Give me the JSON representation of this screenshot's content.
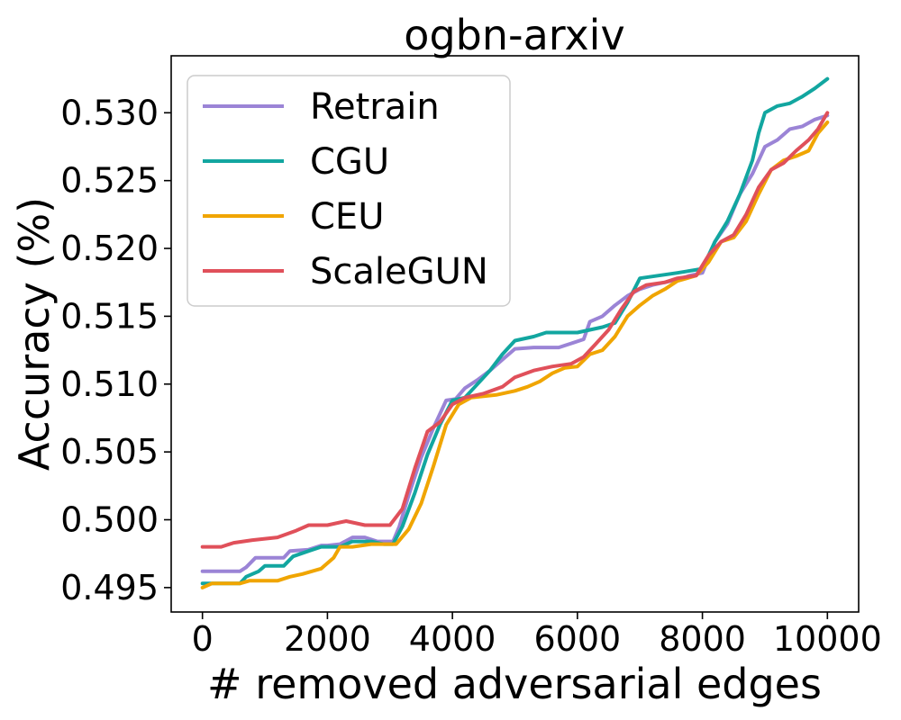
{
  "chart_data": {
    "type": "line",
    "title": "ogbn-arxiv",
    "xlabel": "# removed adversarial edges",
    "ylabel": "Accuracy (%)",
    "xlim": [
      -500,
      10500
    ],
    "ylim": [
      0.4932,
      0.5342
    ],
    "xticks": [
      0,
      2000,
      4000,
      6000,
      8000,
      10000
    ],
    "xtick_labels": [
      "0",
      "2000",
      "4000",
      "6000",
      "8000",
      "10000"
    ],
    "yticks": [
      0.495,
      0.5,
      0.505,
      0.51,
      0.515,
      0.52,
      0.525,
      0.53
    ],
    "ytick_labels": [
      "0.495",
      "0.500",
      "0.505",
      "0.510",
      "0.515",
      "0.520",
      "0.525",
      "0.530"
    ],
    "grid": false,
    "legend_position": "top-left",
    "series": [
      {
        "name": "Retrain",
        "color": "#9B84D6",
        "points": [
          [
            0,
            0.4962
          ],
          [
            600,
            0.4962
          ],
          [
            700,
            0.4965
          ],
          [
            850,
            0.4972
          ],
          [
            1300,
            0.4972
          ],
          [
            1400,
            0.4977
          ],
          [
            1700,
            0.4978
          ],
          [
            1900,
            0.4981
          ],
          [
            2000,
            0.4981
          ],
          [
            2200,
            0.4982
          ],
          [
            2400,
            0.4987
          ],
          [
            2600,
            0.4987
          ],
          [
            2800,
            0.4984
          ],
          [
            3050,
            0.4984
          ],
          [
            3150,
            0.4995
          ],
          [
            3300,
            0.5018
          ],
          [
            3500,
            0.5046
          ],
          [
            3700,
            0.5068
          ],
          [
            3900,
            0.5088
          ],
          [
            4050,
            0.5089
          ],
          [
            4200,
            0.5097
          ],
          [
            4400,
            0.5103
          ],
          [
            4600,
            0.511
          ],
          [
            4800,
            0.5118
          ],
          [
            5000,
            0.5126
          ],
          [
            5300,
            0.5127
          ],
          [
            5700,
            0.5127
          ],
          [
            5900,
            0.513
          ],
          [
            6100,
            0.5133
          ],
          [
            6200,
            0.5146
          ],
          [
            6400,
            0.515
          ],
          [
            6600,
            0.5158
          ],
          [
            6800,
            0.5165
          ],
          [
            7000,
            0.517
          ],
          [
            7200,
            0.5173
          ],
          [
            7400,
            0.5175
          ],
          [
            7600,
            0.5177
          ],
          [
            7800,
            0.518
          ],
          [
            8000,
            0.5182
          ],
          [
            8200,
            0.5205
          ],
          [
            8400,
            0.5218
          ],
          [
            8600,
            0.524
          ],
          [
            8800,
            0.5255
          ],
          [
            9000,
            0.5275
          ],
          [
            9200,
            0.528
          ],
          [
            9400,
            0.5288
          ],
          [
            9600,
            0.529
          ],
          [
            9800,
            0.5295
          ],
          [
            10000,
            0.5298
          ]
        ]
      },
      {
        "name": "CGU",
        "color": "#12A6A0",
        "points": [
          [
            0,
            0.4953
          ],
          [
            600,
            0.4953
          ],
          [
            700,
            0.4958
          ],
          [
            900,
            0.4962
          ],
          [
            1000,
            0.4966
          ],
          [
            1300,
            0.4966
          ],
          [
            1450,
            0.4973
          ],
          [
            1700,
            0.4977
          ],
          [
            1900,
            0.498
          ],
          [
            2200,
            0.498
          ],
          [
            2400,
            0.4984
          ],
          [
            2700,
            0.4984
          ],
          [
            2900,
            0.4982
          ],
          [
            3050,
            0.4982
          ],
          [
            3200,
            0.4995
          ],
          [
            3400,
            0.502
          ],
          [
            3600,
            0.5048
          ],
          [
            3800,
            0.507
          ],
          [
            4000,
            0.5088
          ],
          [
            4200,
            0.509
          ],
          [
            4400,
            0.51
          ],
          [
            4600,
            0.511
          ],
          [
            4800,
            0.5122
          ],
          [
            5000,
            0.5132
          ],
          [
            5300,
            0.5135
          ],
          [
            5500,
            0.5138
          ],
          [
            6000,
            0.5138
          ],
          [
            6200,
            0.514
          ],
          [
            6400,
            0.5142
          ],
          [
            6600,
            0.5145
          ],
          [
            6800,
            0.516
          ],
          [
            7000,
            0.5178
          ],
          [
            7300,
            0.518
          ],
          [
            7600,
            0.5182
          ],
          [
            8000,
            0.5185
          ],
          [
            8200,
            0.5205
          ],
          [
            8400,
            0.522
          ],
          [
            8600,
            0.524
          ],
          [
            8800,
            0.5265
          ],
          [
            8900,
            0.5285
          ],
          [
            9000,
            0.53
          ],
          [
            9200,
            0.5305
          ],
          [
            9400,
            0.5307
          ],
          [
            9600,
            0.5312
          ],
          [
            9800,
            0.5318
          ],
          [
            10000,
            0.5325
          ]
        ]
      },
      {
        "name": "CEU",
        "color": "#F0A500",
        "points": [
          [
            0,
            0.495
          ],
          [
            150,
            0.4953
          ],
          [
            600,
            0.4953
          ],
          [
            750,
            0.4955
          ],
          [
            1200,
            0.4955
          ],
          [
            1400,
            0.4958
          ],
          [
            1600,
            0.496
          ],
          [
            1900,
            0.4964
          ],
          [
            2100,
            0.4972
          ],
          [
            2200,
            0.498
          ],
          [
            2400,
            0.498
          ],
          [
            2700,
            0.4982
          ],
          [
            3100,
            0.4982
          ],
          [
            3300,
            0.4993
          ],
          [
            3500,
            0.5012
          ],
          [
            3700,
            0.504
          ],
          [
            3900,
            0.507
          ],
          [
            4100,
            0.5085
          ],
          [
            4300,
            0.509
          ],
          [
            4700,
            0.5092
          ],
          [
            5000,
            0.5095
          ],
          [
            5200,
            0.5098
          ],
          [
            5400,
            0.5102
          ],
          [
            5600,
            0.5108
          ],
          [
            5800,
            0.5112
          ],
          [
            6000,
            0.5113
          ],
          [
            6200,
            0.5122
          ],
          [
            6400,
            0.5125
          ],
          [
            6600,
            0.5135
          ],
          [
            6800,
            0.515
          ],
          [
            7000,
            0.5158
          ],
          [
            7200,
            0.5165
          ],
          [
            7400,
            0.517
          ],
          [
            7600,
            0.5176
          ],
          [
            7900,
            0.518
          ],
          [
            8100,
            0.519
          ],
          [
            8300,
            0.5205
          ],
          [
            8500,
            0.5208
          ],
          [
            8700,
            0.522
          ],
          [
            8900,
            0.524
          ],
          [
            9100,
            0.5258
          ],
          [
            9300,
            0.5265
          ],
          [
            9500,
            0.5268
          ],
          [
            9700,
            0.5272
          ],
          [
            9850,
            0.5285
          ],
          [
            10000,
            0.5293
          ]
        ]
      },
      {
        "name": "ScaleGUN",
        "color": "#E0505A",
        "points": [
          [
            0,
            0.498
          ],
          [
            300,
            0.498
          ],
          [
            500,
            0.4983
          ],
          [
            800,
            0.4985
          ],
          [
            1200,
            0.4987
          ],
          [
            1500,
            0.4992
          ],
          [
            1700,
            0.4996
          ],
          [
            2000,
            0.4996
          ],
          [
            2300,
            0.4999
          ],
          [
            2600,
            0.4996
          ],
          [
            3000,
            0.4996
          ],
          [
            3200,
            0.5008
          ],
          [
            3400,
            0.5038
          ],
          [
            3600,
            0.5065
          ],
          [
            3800,
            0.5072
          ],
          [
            4000,
            0.5085
          ],
          [
            4200,
            0.509
          ],
          [
            4500,
            0.5093
          ],
          [
            4800,
            0.5098
          ],
          [
            5000,
            0.5105
          ],
          [
            5300,
            0.511
          ],
          [
            5600,
            0.5113
          ],
          [
            5900,
            0.5115
          ],
          [
            6100,
            0.512
          ],
          [
            6300,
            0.513
          ],
          [
            6500,
            0.514
          ],
          [
            6700,
            0.5155
          ],
          [
            6900,
            0.5168
          ],
          [
            7100,
            0.5173
          ],
          [
            7400,
            0.5175
          ],
          [
            7600,
            0.5178
          ],
          [
            7900,
            0.518
          ],
          [
            8100,
            0.5195
          ],
          [
            8300,
            0.5205
          ],
          [
            8500,
            0.521
          ],
          [
            8700,
            0.5225
          ],
          [
            8900,
            0.5245
          ],
          [
            9100,
            0.5258
          ],
          [
            9300,
            0.5263
          ],
          [
            9500,
            0.5272
          ],
          [
            9700,
            0.528
          ],
          [
            9850,
            0.5288
          ],
          [
            10000,
            0.53
          ]
        ]
      }
    ]
  }
}
